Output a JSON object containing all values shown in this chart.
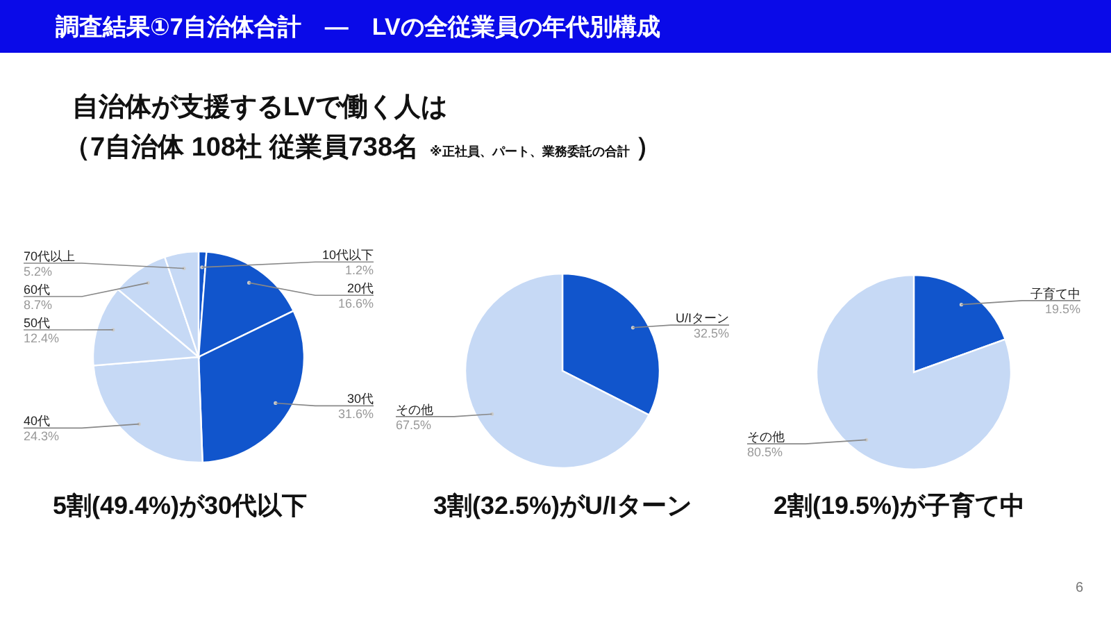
{
  "chart_data": [
    {
      "type": "pie",
      "title": "調査結果①7自治体合計　―　LVの全従業員の年代別構成",
      "subtitle": "自治体が支援するLVで働く人は",
      "annotations": [
        "（7自治体 108社 従業員738名",
        "※正社員、パート、業務委託の合計",
        "）"
      ],
      "xlabel": "5割(49.4%)が30代以下",
      "categories": [
        "10代以下",
        "20代",
        "30代",
        "40代",
        "50代",
        "60代",
        "70代以上"
      ],
      "values": [
        1.2,
        16.6,
        31.6,
        24.3,
        12.4,
        8.7,
        5.2
      ],
      "value_labels": [
        "1.2%",
        "16.6%",
        "31.6%",
        "24.3%",
        "12.4%",
        "8.7%",
        "5.2%"
      ],
      "colors": [
        "#1155cc",
        "#1155cc",
        "#1155cc",
        "#c6d9f5",
        "#c6d9f5",
        "#c6d9f5",
        "#c6d9f5"
      ]
    },
    {
      "type": "pie",
      "xlabel": "3割(32.5%)がU/Iターン",
      "categories": [
        "U/Iターン",
        "その他"
      ],
      "values": [
        32.5,
        67.5
      ],
      "value_labels": [
        "32.5%",
        "67.5%"
      ],
      "colors": [
        "#1155cc",
        "#c6d9f5"
      ]
    },
    {
      "type": "pie",
      "xlabel": "2割(19.5%)が子育て中",
      "annotations": [
        "6"
      ],
      "categories": [
        "子育て中",
        "その他"
      ],
      "values": [
        19.5,
        80.5
      ],
      "value_labels": [
        "19.5%",
        "80.5%"
      ],
      "colors": [
        "#1155cc",
        "#c6d9f5"
      ]
    }
  ]
}
